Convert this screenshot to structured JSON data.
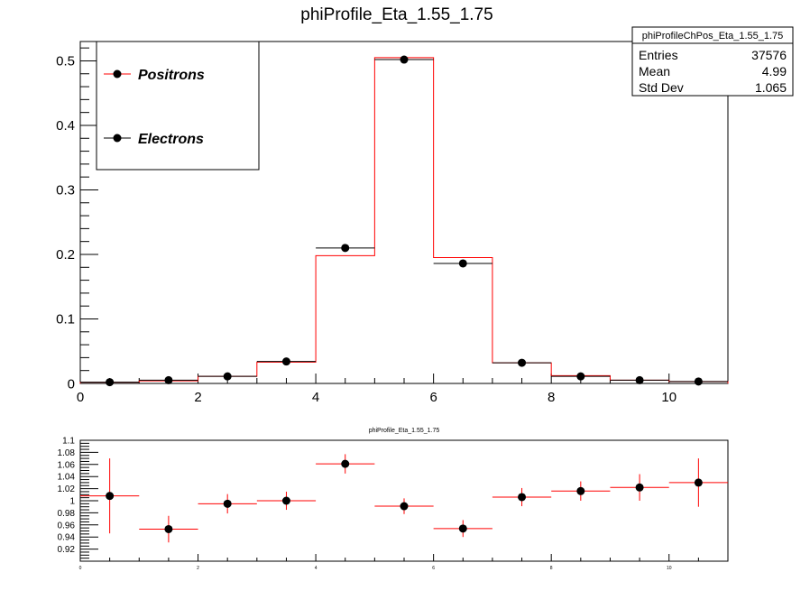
{
  "title": "phiProfile_Eta_1.55_1.75",
  "stats_box": {
    "name": "phiProfileChPos_Eta_1.55_1.75",
    "rows": [
      {
        "label": "Entries",
        "value": "37576"
      },
      {
        "label": "Mean",
        "value": "4.99"
      },
      {
        "label": "Std Dev",
        "value": "1.065"
      }
    ]
  },
  "legend": {
    "items": [
      {
        "label": "Positrons",
        "color": "#ff0000"
      },
      {
        "label": "Electrons",
        "color": "#000000"
      }
    ]
  },
  "ratio_title": "phiProfile_Eta_1.55_1.75",
  "chart_data": [
    {
      "type": "histogram",
      "title": "phiProfile_Eta_1.55_1.75",
      "xlim": [
        0,
        11
      ],
      "ylim": [
        0,
        0.53
      ],
      "x_ticks": [
        0,
        2,
        4,
        6,
        8,
        10
      ],
      "y_ticks": [
        0,
        0.1,
        0.2,
        0.3,
        0.4,
        0.5
      ],
      "y_tick_labels": [
        "0",
        "0.1",
        "0.2",
        "0.3",
        "0.4",
        "0.5"
      ],
      "bin_edges": [
        0,
        1,
        2,
        3,
        4,
        5,
        6,
        7,
        8,
        9,
        10,
        11
      ],
      "series": [
        {
          "name": "Positrons",
          "style": "step",
          "color": "#ff0000",
          "values": [
            0.002,
            0.004,
            0.011,
            0.033,
            0.198,
            0.505,
            0.195,
            0.032,
            0.012,
            0.005,
            0.003
          ]
        },
        {
          "name": "Electrons",
          "style": "markers",
          "color": "#000000",
          "values": [
            0.002,
            0.005,
            0.011,
            0.034,
            0.21,
            0.502,
            0.186,
            0.032,
            0.011,
            0.005,
            0.003
          ]
        }
      ]
    },
    {
      "type": "scatter",
      "title": "phiProfile_Eta_1.55_1.75",
      "xlim": [
        0,
        11
      ],
      "ylim": [
        0.9,
        1.1
      ],
      "x_ticks": [
        0,
        2,
        4,
        6,
        8,
        10
      ],
      "y_ticks": [
        0.92,
        0.94,
        0.96,
        0.98,
        1,
        1.02,
        1.04,
        1.06,
        1.08,
        1.1
      ],
      "y_tick_labels": [
        "0.92",
        "0.94",
        "0.96",
        "0.98",
        "1",
        "1.02",
        "1.04",
        "1.06",
        "1.08",
        "1.1"
      ],
      "x": [
        0.5,
        1.5,
        2.5,
        3.5,
        4.5,
        5.5,
        6.5,
        7.5,
        8.5,
        9.5,
        10.5
      ],
      "values": [
        1.008,
        0.953,
        0.995,
        1.0,
        1.061,
        0.991,
        0.954,
        1.006,
        1.016,
        1.022,
        1.03
      ],
      "y_err": [
        0.062,
        0.022,
        0.016,
        0.015,
        0.016,
        0.013,
        0.014,
        0.015,
        0.016,
        0.022,
        0.04
      ],
      "x_err": 0.5,
      "marker_color": "#000000",
      "error_color": "#ff0000"
    }
  ]
}
